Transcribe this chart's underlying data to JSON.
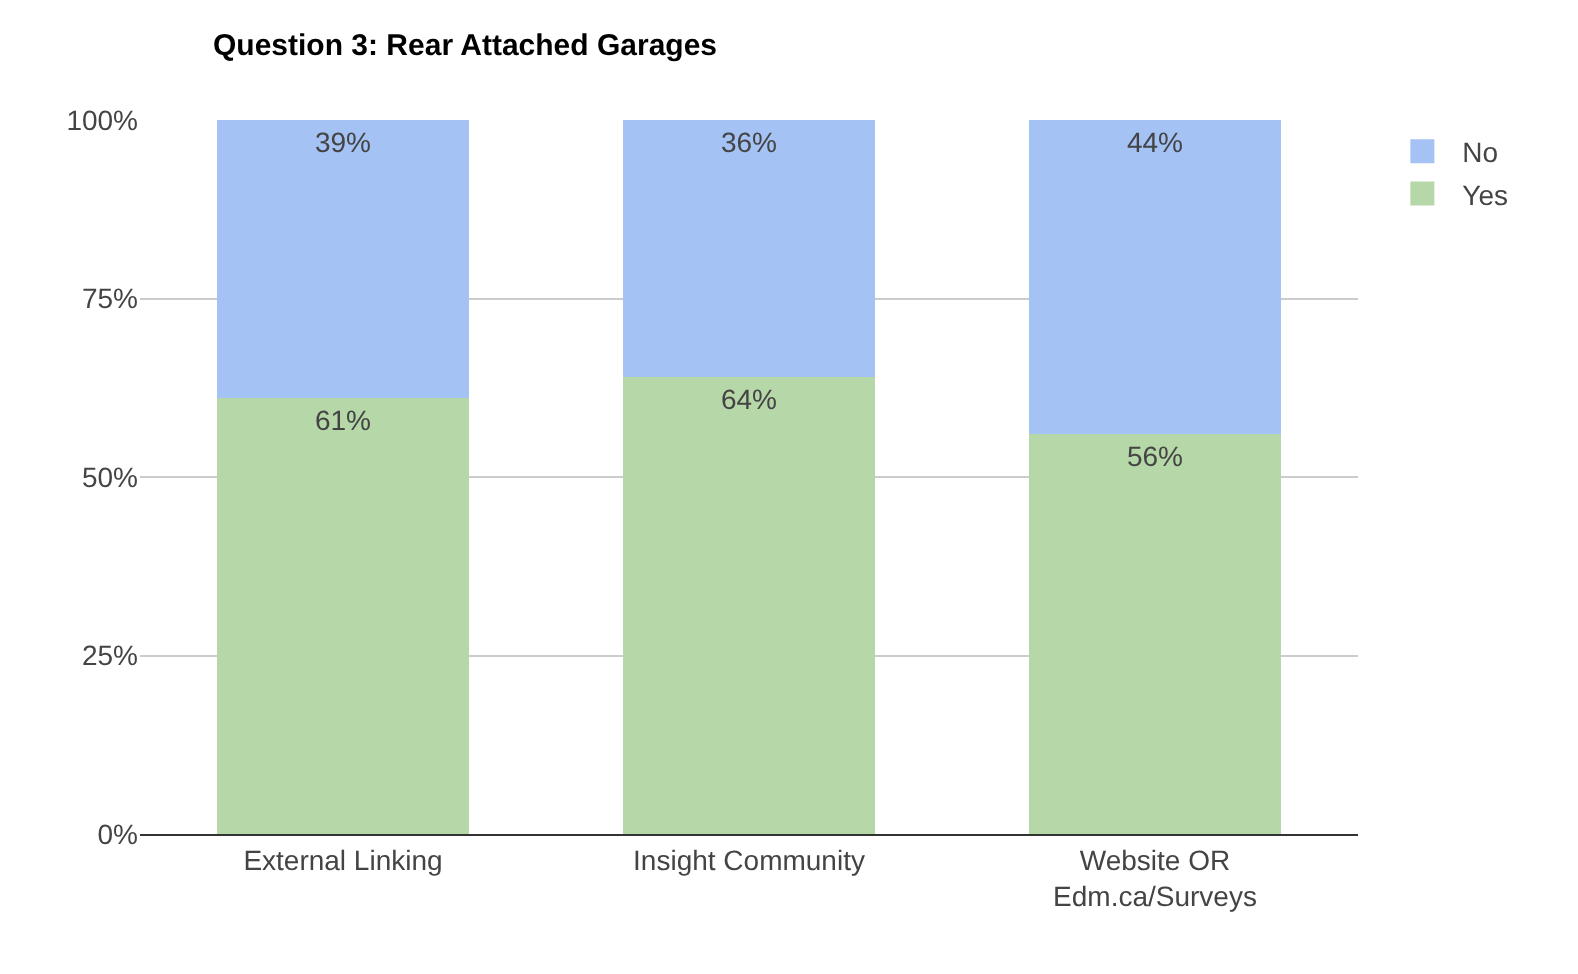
{
  "chart_data": {
    "type": "bar",
    "title": "Question 3: Rear Attached Garages",
    "stacked": true,
    "categories": [
      "External Linking",
      "Insight Community",
      "Website OR\nEdm.ca/Surveys"
    ],
    "series": [
      {
        "name": "Yes",
        "color": "#b6d7a8",
        "values": [
          61,
          64,
          56
        ],
        "value_labels": [
          "61%",
          "64%",
          "56%"
        ]
      },
      {
        "name": "No",
        "color": "#a4c2f4",
        "values": [
          39,
          36,
          44
        ],
        "value_labels": [
          "39%",
          "36%",
          "44%"
        ]
      }
    ],
    "ylim": [
      0,
      100
    ],
    "yticks": [
      {
        "value": 0,
        "label": "0%"
      },
      {
        "value": 25,
        "label": "25%"
      },
      {
        "value": 50,
        "label": "50%"
      },
      {
        "value": 75,
        "label": "75%"
      },
      {
        "value": 100,
        "label": "100%"
      }
    ],
    "grid": "y",
    "legend": "top right"
  }
}
